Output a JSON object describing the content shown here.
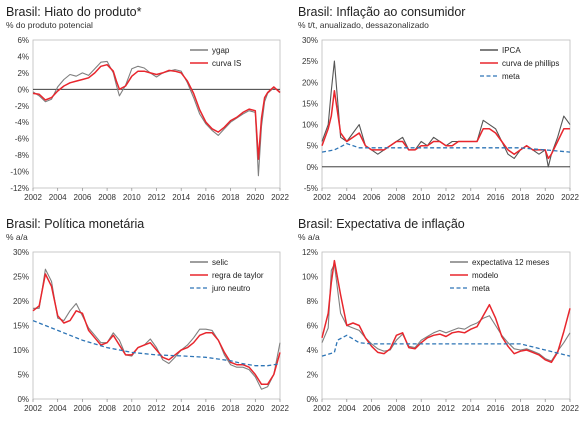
{
  "chart_data": [
    {
      "id": "hiato",
      "type": "line",
      "title": "Brasil: Hiato do produto*",
      "subtitle": "% do produto potencial",
      "xlim": [
        2002,
        2022
      ],
      "ylim": [
        -12,
        6
      ],
      "yticks": [
        -12,
        -10,
        -8,
        -6,
        -4,
        -2,
        0,
        2,
        4,
        6
      ],
      "ytick_labels": [
        "-12%",
        "-10%",
        "-8%",
        "-6%",
        "-4%",
        "-2%",
        "0%",
        "2%",
        "4%",
        "6%"
      ],
      "xticks": [
        2002,
        2004,
        2006,
        2008,
        2010,
        2012,
        2014,
        2016,
        2018,
        2020,
        2022
      ],
      "xtick_labels": [
        "2002",
        "2004",
        "2006",
        "2008",
        "2010",
        "2012",
        "2014",
        "2016",
        "2018",
        "2020",
        "2022"
      ],
      "zero_line": true,
      "legend_position": "top-right",
      "series": [
        {
          "name": "ygap",
          "color": "#7f7f7f",
          "x": [
            2002,
            2002.5,
            2003,
            2003.5,
            2004,
            2004.5,
            2005,
            2005.5,
            2006,
            2006.5,
            2007,
            2007.5,
            2008,
            2008.5,
            2008.75,
            2009,
            2009.5,
            2010,
            2010.5,
            2011,
            2011.5,
            2012,
            2012.5,
            2013,
            2013.5,
            2014,
            2014.5,
            2015,
            2015.5,
            2016,
            2016.5,
            2017,
            2017.5,
            2018,
            2018.5,
            2019,
            2019.5,
            2020,
            2020.25,
            2020.5,
            2020.75,
            2021,
            2021.5,
            2022
          ],
          "y": [
            -0.3,
            -0.8,
            -1.5,
            -1.2,
            0.3,
            1.2,
            1.8,
            1.6,
            2.0,
            1.7,
            2.5,
            3.3,
            3.4,
            2.0,
            0.5,
            -0.8,
            0.5,
            2.5,
            2.8,
            2.6,
            2.0,
            1.5,
            2.0,
            2.2,
            2.4,
            2.2,
            0.8,
            -1.0,
            -3.0,
            -4.2,
            -5.0,
            -5.6,
            -4.8,
            -4.0,
            -3.5,
            -3.0,
            -2.6,
            -2.8,
            -10.5,
            -4.5,
            -1.5,
            -0.5,
            0.2,
            -0.3
          ]
        },
        {
          "name": "curva IS",
          "color": "#e8262d",
          "x": [
            2002,
            2002.5,
            2003,
            2003.5,
            2004,
            2004.5,
            2005,
            2005.5,
            2006,
            2006.5,
            2007,
            2007.5,
            2008,
            2008.5,
            2008.75,
            2009,
            2009.5,
            2010,
            2010.5,
            2011,
            2011.5,
            2012,
            2012.5,
            2013,
            2013.5,
            2014,
            2014.5,
            2015,
            2015.5,
            2016,
            2016.5,
            2017,
            2017.5,
            2018,
            2018.5,
            2019,
            2019.5,
            2020,
            2020.25,
            2020.5,
            2020.75,
            2021,
            2021.5,
            2022
          ],
          "y": [
            -0.5,
            -0.6,
            -1.3,
            -1.0,
            -0.2,
            0.4,
            0.8,
            1.0,
            1.2,
            1.4,
            2.0,
            2.8,
            3.0,
            2.2,
            1.0,
            0.0,
            0.4,
            1.6,
            2.2,
            2.2,
            2.0,
            1.8,
            2.0,
            2.3,
            2.2,
            2.0,
            1.0,
            -0.5,
            -2.5,
            -4.0,
            -4.8,
            -5.2,
            -4.6,
            -3.8,
            -3.4,
            -2.8,
            -2.4,
            -2.6,
            -8.5,
            -3.5,
            -1.0,
            -0.4,
            0.3,
            -0.4
          ]
        }
      ]
    },
    {
      "id": "inflacao",
      "type": "line",
      "title": "Brasil: Inflação ao consumidor",
      "subtitle": "% t/t, anualizado, dessazonalizado",
      "xlim": [
        2002,
        2022
      ],
      "ylim": [
        -5,
        30
      ],
      "yticks": [
        -5,
        0,
        5,
        10,
        15,
        20,
        25,
        30
      ],
      "ytick_labels": [
        "-5%",
        "0%",
        "5%",
        "10%",
        "15%",
        "20%",
        "25%",
        "30%"
      ],
      "xticks": [
        2002,
        2004,
        2006,
        2008,
        2010,
        2012,
        2014,
        2016,
        2018,
        2020,
        2022
      ],
      "xtick_labels": [
        "2002",
        "2004",
        "2006",
        "2008",
        "2010",
        "2012",
        "2014",
        "2016",
        "2018",
        "2020",
        "2022"
      ],
      "zero_line": true,
      "legend_position": "top-right",
      "series": [
        {
          "name": "IPCA",
          "color": "#555555",
          "x": [
            2002,
            2002.5,
            2002.75,
            2003,
            2003.5,
            2004,
            2004.5,
            2005,
            2005.5,
            2006,
            2006.5,
            2007,
            2007.5,
            2008,
            2008.5,
            2009,
            2009.5,
            2010,
            2010.5,
            2011,
            2011.5,
            2012,
            2012.5,
            2013,
            2013.5,
            2014,
            2014.5,
            2015,
            2015.5,
            2016,
            2016.5,
            2017,
            2017.5,
            2018,
            2018.5,
            2019,
            2019.5,
            2020,
            2020.25,
            2020.5,
            2021,
            2021.5,
            2022
          ],
          "y": [
            6,
            10,
            18,
            25,
            7,
            6,
            8,
            10,
            5,
            4,
            3,
            4,
            5,
            6,
            7,
            4,
            4,
            6,
            5,
            7,
            6,
            5,
            6,
            6,
            6,
            6,
            6,
            11,
            10,
            9,
            6,
            3,
            2,
            4,
            5,
            4,
            3,
            4,
            0,
            3,
            7,
            12,
            10
          ]
        },
        {
          "name": "curva de phillips",
          "color": "#e8262d",
          "x": [
            2002,
            2002.5,
            2002.75,
            2003,
            2003.5,
            2004,
            2004.5,
            2005,
            2005.5,
            2006,
            2006.5,
            2007,
            2007.5,
            2008,
            2008.5,
            2009,
            2009.5,
            2010,
            2010.5,
            2011,
            2011.5,
            2012,
            2012.5,
            2013,
            2013.5,
            2014,
            2014.5,
            2015,
            2015.5,
            2016,
            2016.5,
            2017,
            2017.5,
            2018,
            2018.5,
            2019,
            2019.5,
            2020,
            2020.25,
            2020.5,
            2021,
            2021.5,
            2022
          ],
          "y": [
            5,
            9,
            12,
            18,
            8,
            6,
            7,
            8,
            5,
            4,
            4,
            4,
            5,
            6,
            6,
            4,
            4,
            5,
            5,
            6,
            6,
            5,
            5,
            6,
            6,
            6,
            6,
            9,
            9,
            8,
            6,
            4,
            3,
            4,
            5,
            4,
            4,
            4,
            2,
            3,
            6,
            9,
            9
          ]
        },
        {
          "name": "meta",
          "color": "#2e75b6",
          "dashed": true,
          "x": [
            2002,
            2003,
            2004,
            2005,
            2006,
            2018,
            2019,
            2020,
            2021,
            2022
          ],
          "y": [
            3.5,
            4.0,
            5.5,
            4.5,
            4.5,
            4.5,
            4.25,
            4.0,
            3.75,
            3.5
          ]
        }
      ]
    },
    {
      "id": "monetaria",
      "type": "line",
      "title": "Brasil: Política monetária",
      "subtitle": "% a/a",
      "xlim": [
        2002,
        2022
      ],
      "ylim": [
        0,
        30
      ],
      "yticks": [
        0,
        5,
        10,
        15,
        20,
        25,
        30
      ],
      "ytick_labels": [
        "0%",
        "5%",
        "10%",
        "15%",
        "20%",
        "25%",
        "30%"
      ],
      "xticks": [
        2002,
        2004,
        2006,
        2008,
        2010,
        2012,
        2014,
        2016,
        2018,
        2020,
        2022
      ],
      "xtick_labels": [
        "2002",
        "2004",
        "2006",
        "2008",
        "2010",
        "2012",
        "2014",
        "2016",
        "2018",
        "2020",
        "2022"
      ],
      "zero_line": false,
      "legend_position": "top-right",
      "series": [
        {
          "name": "selic",
          "color": "#7f7f7f",
          "x": [
            2002,
            2002.5,
            2003,
            2003.5,
            2004,
            2004.5,
            2005,
            2005.5,
            2006,
            2006.5,
            2007,
            2007.5,
            2008,
            2008.5,
            2009,
            2009.5,
            2010,
            2010.5,
            2011,
            2011.5,
            2012,
            2012.5,
            2013,
            2013.5,
            2014,
            2014.5,
            2015,
            2015.5,
            2016,
            2016.5,
            2017,
            2017.5,
            2018,
            2018.5,
            2019,
            2019.5,
            2020,
            2020.5,
            2021,
            2021.5,
            2022
          ],
          "y": [
            18.5,
            18.5,
            26.5,
            24,
            16.5,
            16,
            18,
            19.5,
            17,
            14.5,
            13,
            11.5,
            11.5,
            13.5,
            12,
            9,
            8.75,
            10.5,
            11,
            12.25,
            10.5,
            8,
            7.25,
            8.5,
            10,
            11,
            12.5,
            14.25,
            14.25,
            14,
            12,
            9,
            7,
            6.5,
            6.5,
            6,
            4.5,
            2,
            2.5,
            5,
            11.5
          ]
        },
        {
          "name": "regra de taylor",
          "color": "#e8262d",
          "x": [
            2002,
            2002.5,
            2003,
            2003.5,
            2004,
            2004.5,
            2005,
            2005.5,
            2006,
            2006.5,
            2007,
            2007.5,
            2008,
            2008.5,
            2009,
            2009.5,
            2010,
            2010.5,
            2011,
            2011.5,
            2012,
            2012.5,
            2013,
            2013.5,
            2014,
            2014.5,
            2015,
            2015.5,
            2016,
            2016.5,
            2017,
            2017.5,
            2018,
            2018.5,
            2019,
            2019.5,
            2020,
            2020.5,
            2021,
            2021.5,
            2022
          ],
          "y": [
            18,
            19,
            25.5,
            23,
            17,
            15.5,
            16,
            18,
            17.5,
            14,
            12.5,
            11,
            11.5,
            13,
            11,
            9,
            9,
            10.5,
            11,
            11.5,
            10,
            8.5,
            8,
            9,
            10,
            10.5,
            11.5,
            13,
            13.5,
            13.5,
            12,
            9.5,
            7.5,
            7,
            7,
            6.5,
            5,
            3,
            3,
            5,
            9.5
          ]
        },
        {
          "name": "juro neutro",
          "color": "#2e75b6",
          "dashed": true,
          "x": [
            2002,
            2004,
            2006,
            2008,
            2010,
            2012,
            2014,
            2016,
            2018,
            2019,
            2020,
            2021,
            2022
          ],
          "y": [
            16,
            14,
            12,
            10.5,
            9.5,
            9,
            8.8,
            8.5,
            7.8,
            7.2,
            6.8,
            6.8,
            7.2
          ]
        }
      ]
    },
    {
      "id": "expectativa",
      "type": "line",
      "title": "Brasil: Expectativa de inflação",
      "subtitle": "% a/a",
      "xlim": [
        2002,
        2022
      ],
      "ylim": [
        0,
        12
      ],
      "yticks": [
        0,
        2,
        4,
        6,
        8,
        10,
        12
      ],
      "ytick_labels": [
        "0%",
        "2%",
        "4%",
        "6%",
        "8%",
        "10%",
        "12%"
      ],
      "xticks": [
        2002,
        2004,
        2006,
        2008,
        2010,
        2012,
        2014,
        2016,
        2018,
        2020,
        2022
      ],
      "xtick_labels": [
        "2002",
        "2004",
        "2006",
        "2008",
        "2010",
        "2012",
        "2014",
        "2016",
        "2018",
        "2020",
        "2022"
      ],
      "zero_line": false,
      "legend_position": "top-right",
      "series": [
        {
          "name": "expectativa 12 meses",
          "color": "#7f7f7f",
          "x": [
            2002,
            2002.5,
            2002.75,
            2003,
            2003.5,
            2004,
            2004.5,
            2005,
            2005.5,
            2006,
            2006.5,
            2007,
            2007.5,
            2008,
            2008.5,
            2009,
            2009.5,
            2010,
            2010.5,
            2011,
            2011.5,
            2012,
            2012.5,
            2013,
            2013.5,
            2014,
            2014.5,
            2015,
            2015.5,
            2016,
            2016.5,
            2017,
            2017.5,
            2018,
            2018.5,
            2019,
            2019.5,
            2020,
            2020.5,
            2021,
            2021.5,
            2022
          ],
          "y": [
            4.6,
            5.8,
            10.5,
            11.0,
            7.0,
            6.0,
            5.8,
            5.6,
            5.0,
            4.5,
            4.1,
            3.9,
            4.0,
            4.8,
            5.3,
            4.3,
            4.2,
            4.8,
            5.1,
            5.4,
            5.6,
            5.4,
            5.6,
            5.8,
            5.7,
            6.0,
            6.2,
            6.6,
            6.8,
            6.0,
            5.2,
            4.6,
            4.1,
            4.0,
            4.1,
            3.9,
            3.7,
            3.3,
            3.1,
            3.9,
            4.6,
            5.4
          ]
        },
        {
          "name": "modelo",
          "color": "#e8262d",
          "x": [
            2002,
            2002.5,
            2002.75,
            2003,
            2003.5,
            2004,
            2004.5,
            2005,
            2005.5,
            2006,
            2006.5,
            2007,
            2007.5,
            2008,
            2008.5,
            2009,
            2009.5,
            2010,
            2010.5,
            2011,
            2011.5,
            2012,
            2012.5,
            2013,
            2013.5,
            2014,
            2014.5,
            2015,
            2015.5,
            2016,
            2016.5,
            2017,
            2017.5,
            2018,
            2018.5,
            2019,
            2019.5,
            2020,
            2020.5,
            2021,
            2021.5,
            2022
          ],
          "y": [
            5.0,
            7.0,
            9.5,
            11.3,
            8.5,
            6.0,
            6.2,
            6.0,
            5.0,
            4.3,
            3.8,
            3.7,
            4.1,
            5.2,
            5.4,
            4.2,
            4.1,
            4.6,
            5.0,
            5.2,
            5.3,
            5.1,
            5.4,
            5.5,
            5.4,
            5.7,
            5.9,
            6.8,
            7.7,
            6.6,
            5.1,
            4.3,
            3.7,
            3.9,
            4.0,
            3.8,
            3.6,
            3.2,
            3.0,
            3.8,
            5.5,
            7.4
          ]
        },
        {
          "name": "meta",
          "color": "#2e75b6",
          "dashed": true,
          "x": [
            2002,
            2003,
            2003.25,
            2004,
            2005,
            2006,
            2018,
            2019,
            2020,
            2021,
            2022
          ],
          "y": [
            3.5,
            3.8,
            4.8,
            5.2,
            4.6,
            4.5,
            4.5,
            4.25,
            4.0,
            3.75,
            3.5
          ]
        }
      ]
    }
  ]
}
